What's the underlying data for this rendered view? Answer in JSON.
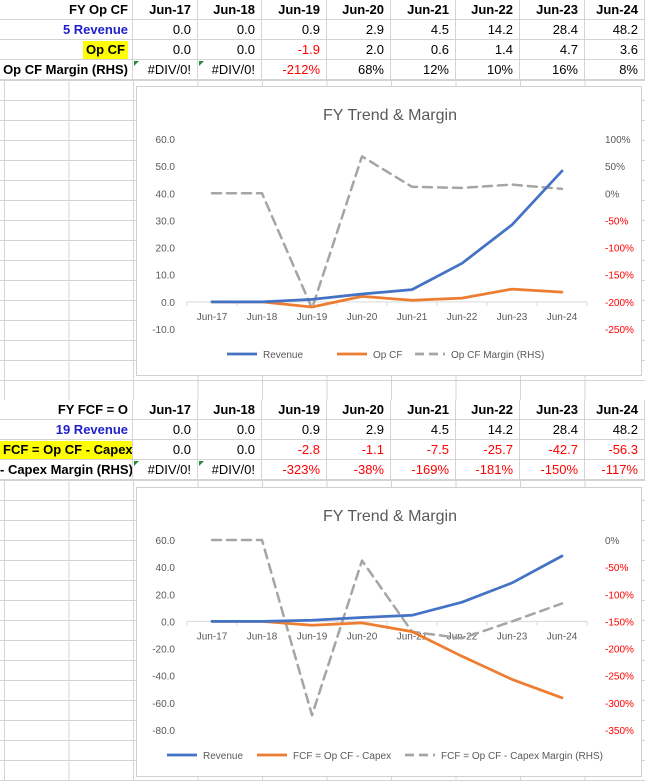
{
  "table1": {
    "title": "FY Op CF",
    "years": [
      "Jun-17",
      "Jun-18",
      "Jun-19",
      "Jun-20",
      "Jun-21",
      "Jun-22",
      "Jun-23",
      "Jun-24"
    ],
    "rows": [
      {
        "label": "5 Revenue",
        "values": [
          "0.0",
          "0.0",
          "0.9",
          "2.9",
          "4.5",
          "14.2",
          "28.4",
          "48.2"
        ]
      },
      {
        "label": "Op CF",
        "values": [
          "0.0",
          "0.0",
          "-1.9",
          "2.0",
          "0.6",
          "1.4",
          "4.7",
          "3.6"
        ]
      },
      {
        "label": "Op CF Margin (RHS)",
        "values": [
          "#DIV/0!",
          "#DIV/0!",
          "-212%",
          "68%",
          "12%",
          "10%",
          "16%",
          "8%"
        ]
      }
    ]
  },
  "table2": {
    "title": "FY FCF = O",
    "years": [
      "Jun-17",
      "Jun-18",
      "Jun-19",
      "Jun-20",
      "Jun-21",
      "Jun-22",
      "Jun-23",
      "Jun-24"
    ],
    "rows": [
      {
        "label": "19 Revenue",
        "values": [
          "0.0",
          "0.0",
          "0.9",
          "2.9",
          "4.5",
          "14.2",
          "28.4",
          "48.2"
        ]
      },
      {
        "label": "FCF = Op CF - Capex",
        "values": [
          "0.0",
          "0.0",
          "-2.8",
          "-1.1",
          "-7.5",
          "-25.7",
          "-42.7",
          "-56.3"
        ]
      },
      {
        "label": "- Capex Margin (RHS)",
        "values": [
          "#DIV/0!",
          "#DIV/0!",
          "-323%",
          "-38%",
          "-169%",
          "-181%",
          "-150%",
          "-117%"
        ]
      }
    ]
  },
  "chart_data": [
    {
      "type": "line",
      "title": "FY Trend & Margin",
      "categories": [
        "Jun-17",
        "Jun-18",
        "Jun-19",
        "Jun-20",
        "Jun-21",
        "Jun-22",
        "Jun-23",
        "Jun-24"
      ],
      "y_ticks": [
        "60.0",
        "50.0",
        "40.0",
        "30.0",
        "20.0",
        "10.0",
        "0.0",
        "-10.0"
      ],
      "ylim": [
        -10,
        60
      ],
      "y2_ticks": [
        "100%",
        "50%",
        "0%",
        "-50%",
        "-100%",
        "-150%",
        "-200%",
        "-250%"
      ],
      "y2lim": [
        -250,
        100
      ],
      "series": [
        {
          "name": "Revenue",
          "axis": "left",
          "color": "#4472c4",
          "dash": false,
          "values": [
            0.0,
            0.0,
            0.9,
            2.9,
            4.5,
            14.2,
            28.4,
            48.2
          ]
        },
        {
          "name": "Op CF",
          "axis": "left",
          "color": "#ed7d31",
          "dash": false,
          "values": [
            0.0,
            0.0,
            -1.9,
            2.0,
            0.6,
            1.4,
            4.7,
            3.6
          ]
        },
        {
          "name": "Op CF Margin (RHS)",
          "axis": "right",
          "color": "#a5a5a5",
          "dash": true,
          "values": [
            0,
            0,
            -212,
            68,
            12,
            10,
            16,
            8
          ]
        }
      ]
    },
    {
      "type": "line",
      "title": "FY Trend & Margin",
      "categories": [
        "Jun-17",
        "Jun-18",
        "Jun-19",
        "Jun-20",
        "Jun-21",
        "Jun-22",
        "Jun-23",
        "Jun-24"
      ],
      "y_ticks": [
        "60.0",
        "40.0",
        "20.0",
        "0.0",
        "-20.0",
        "-40.0",
        "-60.0",
        "-80.0"
      ],
      "ylim": [
        -80,
        60
      ],
      "y2_ticks": [
        "0%",
        "-50%",
        "-100%",
        "-150%",
        "-200%",
        "-250%",
        "-300%",
        "-350%"
      ],
      "y2lim": [
        -350,
        0
      ],
      "series": [
        {
          "name": "Revenue",
          "axis": "left",
          "color": "#4472c4",
          "dash": false,
          "values": [
            0.0,
            0.0,
            0.9,
            2.9,
            4.5,
            14.2,
            28.4,
            48.2
          ]
        },
        {
          "name": "FCF = Op CF - Capex",
          "axis": "left",
          "color": "#ed7d31",
          "dash": false,
          "values": [
            0.0,
            0.0,
            -2.8,
            -1.1,
            -7.5,
            -25.7,
            -42.7,
            -56.3
          ]
        },
        {
          "name": "FCF = Op CF - Capex Margin (RHS)",
          "axis": "right",
          "color": "#a5a5a5",
          "dash": true,
          "values": [
            0,
            0,
            -323,
            -38,
            -169,
            -181,
            -150,
            -117
          ]
        }
      ]
    }
  ]
}
